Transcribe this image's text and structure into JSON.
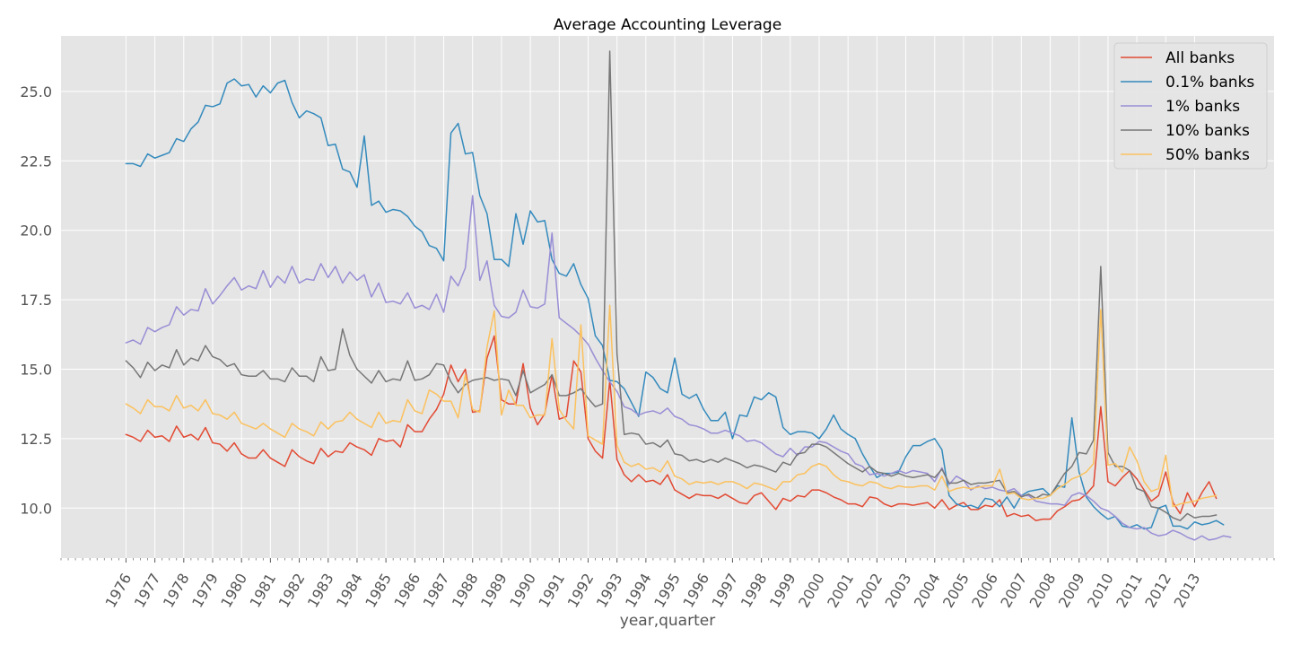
{
  "chart_data": {
    "type": "line",
    "title": "Average Accounting Leverage",
    "xlabel": "year,quarter",
    "ylabel": "",
    "ylim": [
      8.2,
      27.0
    ],
    "yticks": [
      "10.0",
      "12.5",
      "15.0",
      "17.5",
      "20.0",
      "22.5",
      "25.0"
    ],
    "ytick_values": [
      10.0,
      12.5,
      15.0,
      17.5,
      20.0,
      22.5,
      25.0
    ],
    "xlim": [
      1973.75,
      2015.75
    ],
    "xticks": [
      "1976",
      "1977",
      "1978",
      "1979",
      "1980",
      "1981",
      "1982",
      "1983",
      "1984",
      "1985",
      "1986",
      "1987",
      "1988",
      "1989",
      "1990",
      "1991",
      "1992",
      "1993",
      "1994",
      "1995",
      "1996",
      "1997",
      "1998",
      "1999",
      "2000",
      "2001",
      "2002",
      "2003",
      "2004",
      "2005",
      "2006",
      "2007",
      "2008",
      "2009",
      "2010",
      "2011",
      "2012",
      "2013"
    ],
    "grid": true,
    "legend_position": "top-right",
    "style": {
      "background": "#e5e5e5",
      "grid_color": "#ffffff",
      "series_colors": [
        "#e24a33",
        "#348abd",
        "#988ed5",
        "#777777",
        "#fbc15e"
      ]
    },
    "x_start": 1976.0,
    "x_step": 0.25,
    "series": [
      {
        "name": "All banks",
        "values": [
          12.65,
          12.55,
          12.4,
          12.8,
          12.55,
          12.6,
          12.4,
          12.95,
          12.55,
          12.65,
          12.45,
          12.9,
          12.35,
          12.3,
          12.05,
          12.35,
          11.95,
          11.8,
          11.8,
          12.1,
          11.8,
          11.65,
          11.5,
          12.1,
          11.85,
          11.7,
          11.6,
          12.15,
          11.85,
          12.05,
          12.0,
          12.35,
          12.2,
          12.1,
          11.9,
          12.5,
          12.4,
          12.45,
          12.2,
          13.0,
          12.75,
          12.75,
          13.2,
          13.55,
          14.1,
          15.15,
          14.55,
          15.0,
          13.45,
          13.5,
          15.4,
          16.2,
          13.9,
          13.75,
          13.75,
          15.2,
          13.6,
          13.0,
          13.4,
          14.8,
          13.2,
          13.3,
          15.3,
          14.9,
          12.5,
          12.05,
          11.8,
          14.6,
          11.75,
          11.2,
          10.95,
          11.2,
          10.95,
          11.0,
          10.85,
          11.2,
          10.65,
          10.5,
          10.35,
          10.5,
          10.45,
          10.45,
          10.35,
          10.5,
          10.35,
          10.2,
          10.15,
          10.45,
          10.55,
          10.25,
          9.95,
          10.35,
          10.25,
          10.45,
          10.4,
          10.65,
          10.65,
          10.55,
          10.4,
          10.3,
          10.15,
          10.15,
          10.05,
          10.4,
          10.35,
          10.15,
          10.05,
          10.15,
          10.15,
          10.1,
          10.15,
          10.2,
          10.0,
          10.3,
          9.95,
          10.1,
          10.2,
          9.95,
          9.95,
          10.1,
          10.05,
          10.3,
          9.7,
          9.8,
          9.7,
          9.75,
          9.55,
          9.6,
          9.6,
          9.9,
          10.05,
          10.25,
          10.3,
          10.5,
          10.8,
          13.65,
          10.95,
          10.8,
          11.1,
          11.35,
          11.05,
          10.65,
          10.25,
          10.45,
          11.3,
          10.2,
          9.8,
          10.55,
          10.05,
          10.55,
          10.95,
          10.35
        ]
      },
      {
        "name": "0.1% banks",
        "values": [
          22.4,
          22.4,
          22.3,
          22.75,
          22.6,
          22.7,
          22.8,
          23.3,
          23.2,
          23.65,
          23.9,
          24.5,
          24.45,
          24.55,
          25.3,
          25.45,
          25.2,
          25.25,
          24.8,
          25.2,
          24.95,
          25.3,
          25.4,
          24.6,
          24.05,
          24.3,
          24.2,
          24.05,
          23.05,
          23.1,
          22.2,
          22.1,
          21.55,
          23.4,
          20.9,
          21.05,
          20.65,
          20.75,
          20.7,
          20.5,
          20.15,
          19.95,
          19.45,
          19.35,
          18.9,
          23.5,
          23.85,
          22.75,
          22.8,
          21.25,
          20.6,
          18.95,
          18.95,
          18.7,
          20.6,
          19.5,
          20.7,
          20.3,
          20.35,
          18.95,
          18.45,
          18.35,
          18.8,
          18.05,
          17.55,
          16.2,
          15.85,
          14.6,
          14.55,
          14.3,
          13.8,
          13.3,
          14.9,
          14.7,
          14.3,
          14.15,
          15.4,
          14.1,
          13.95,
          14.1,
          13.55,
          13.15,
          13.15,
          13.45,
          12.5,
          13.35,
          13.3,
          14.0,
          13.9,
          14.15,
          14.0,
          12.9,
          12.65,
          12.75,
          12.75,
          12.7,
          12.5,
          12.85,
          13.35,
          12.85,
          12.65,
          12.5,
          11.95,
          11.5,
          11.1,
          11.25,
          11.25,
          11.3,
          11.85,
          12.25,
          12.25,
          12.4,
          12.5,
          12.1,
          10.45,
          10.15,
          10.05,
          10.1,
          10.0,
          10.35,
          10.3,
          10.05,
          10.4,
          10.0,
          10.45,
          10.6,
          10.65,
          10.7,
          10.45,
          10.8,
          10.75,
          13.25,
          11.3,
          10.4,
          10.05,
          9.8,
          9.6,
          9.7,
          9.35,
          9.3,
          9.4,
          9.25,
          9.3,
          10.0,
          10.1,
          9.35,
          9.35,
          9.25,
          9.5,
          9.4,
          9.45,
          9.55,
          9.4
        ]
      },
      {
        "name": "1% banks",
        "values": [
          15.95,
          16.05,
          15.9,
          16.5,
          16.35,
          16.5,
          16.6,
          17.25,
          16.95,
          17.15,
          17.1,
          17.9,
          17.35,
          17.65,
          18.0,
          18.3,
          17.85,
          18.0,
          17.9,
          18.55,
          17.95,
          18.35,
          18.1,
          18.7,
          18.1,
          18.25,
          18.2,
          18.8,
          18.3,
          18.7,
          18.1,
          18.5,
          18.2,
          18.4,
          17.6,
          18.1,
          17.4,
          17.45,
          17.35,
          17.75,
          17.2,
          17.3,
          17.15,
          17.7,
          17.05,
          18.35,
          18.0,
          18.65,
          21.25,
          18.2,
          18.9,
          17.3,
          16.9,
          16.85,
          17.05,
          17.85,
          17.25,
          17.2,
          17.35,
          19.9,
          16.85,
          16.65,
          16.45,
          16.2,
          15.9,
          15.4,
          14.95,
          14.55,
          14.2,
          13.65,
          13.55,
          13.35,
          13.45,
          13.5,
          13.4,
          13.6,
          13.3,
          13.2,
          13.0,
          12.95,
          12.85,
          12.7,
          12.7,
          12.8,
          12.7,
          12.6,
          12.4,
          12.45,
          12.35,
          12.15,
          11.95,
          11.85,
          12.15,
          11.9,
          12.2,
          12.2,
          12.4,
          12.35,
          12.2,
          12.05,
          11.95,
          11.6,
          11.5,
          11.2,
          11.25,
          11.15,
          11.25,
          11.35,
          11.25,
          11.35,
          11.3,
          11.25,
          10.95,
          11.45,
          10.85,
          11.15,
          11.0,
          10.65,
          10.8,
          10.7,
          10.75,
          10.65,
          10.6,
          10.7,
          10.45,
          10.45,
          10.25,
          10.2,
          10.15,
          10.15,
          10.1,
          10.45,
          10.55,
          10.45,
          10.25,
          10.0,
          9.9,
          9.7,
          9.45,
          9.3,
          9.25,
          9.3,
          9.1,
          9.0,
          9.05,
          9.2,
          9.1,
          8.95,
          8.85,
          9.0,
          8.85,
          8.9,
          9.0,
          8.95
        ]
      },
      {
        "name": "10% banks",
        "values": [
          15.3,
          15.05,
          14.7,
          15.25,
          14.95,
          15.15,
          15.05,
          15.7,
          15.15,
          15.4,
          15.3,
          15.85,
          15.45,
          15.35,
          15.1,
          15.2,
          14.8,
          14.75,
          14.75,
          14.95,
          14.65,
          14.65,
          14.55,
          15.05,
          14.75,
          14.75,
          14.55,
          15.45,
          14.95,
          15.0,
          16.45,
          15.5,
          15.0,
          14.75,
          14.5,
          14.95,
          14.55,
          14.65,
          14.6,
          15.3,
          14.6,
          14.65,
          14.8,
          15.2,
          15.15,
          14.55,
          14.15,
          14.45,
          14.6,
          14.65,
          14.7,
          14.6,
          14.65,
          14.6,
          14.05,
          14.95,
          14.15,
          14.3,
          14.45,
          14.8,
          14.05,
          14.05,
          14.15,
          14.3,
          13.95,
          13.65,
          13.75,
          26.45,
          15.55,
          12.65,
          12.7,
          12.65,
          12.3,
          12.35,
          12.2,
          12.45,
          11.95,
          11.9,
          11.7,
          11.75,
          11.65,
          11.75,
          11.65,
          11.8,
          11.7,
          11.6,
          11.45,
          11.55,
          11.5,
          11.4,
          11.3,
          11.65,
          11.55,
          11.95,
          12.0,
          12.3,
          12.3,
          12.2,
          12.0,
          11.8,
          11.6,
          11.45,
          11.3,
          11.5,
          11.3,
          11.25,
          11.15,
          11.25,
          11.15,
          11.1,
          11.15,
          11.2,
          11.1,
          11.4,
          10.9,
          10.9,
          11.0,
          10.85,
          10.9,
          10.9,
          10.95,
          11.0,
          10.55,
          10.6,
          10.4,
          10.5,
          10.35,
          10.5,
          10.45,
          10.85,
          11.25,
          11.5,
          12.0,
          11.95,
          12.45,
          18.7,
          12.0,
          11.5,
          11.5,
          11.35,
          10.7,
          10.6,
          10.05,
          10.0,
          9.85,
          9.65,
          9.55,
          9.8,
          9.65,
          9.7,
          9.7,
          9.75
        ]
      },
      {
        "name": "50% banks",
        "values": [
          13.75,
          13.6,
          13.4,
          13.9,
          13.65,
          13.65,
          13.5,
          14.05,
          13.6,
          13.7,
          13.5,
          13.9,
          13.4,
          13.35,
          13.2,
          13.45,
          13.05,
          12.95,
          12.85,
          13.05,
          12.85,
          12.7,
          12.55,
          13.05,
          12.85,
          12.75,
          12.6,
          13.1,
          12.85,
          13.1,
          13.15,
          13.45,
          13.2,
          13.05,
          12.9,
          13.45,
          13.05,
          13.15,
          13.1,
          13.9,
          13.5,
          13.4,
          14.25,
          14.1,
          13.85,
          13.85,
          13.25,
          14.8,
          13.55,
          13.45,
          15.8,
          17.1,
          13.35,
          14.25,
          13.7,
          13.7,
          13.25,
          13.35,
          13.35,
          16.1,
          13.55,
          13.15,
          12.85,
          16.6,
          12.6,
          12.45,
          12.3,
          17.3,
          12.25,
          11.65,
          11.5,
          11.6,
          11.4,
          11.45,
          11.3,
          11.7,
          11.15,
          11.05,
          10.85,
          10.95,
          10.9,
          10.95,
          10.85,
          10.95,
          10.95,
          10.85,
          10.7,
          10.9,
          10.85,
          10.75,
          10.65,
          10.95,
          10.95,
          11.2,
          11.25,
          11.5,
          11.6,
          11.5,
          11.2,
          11.0,
          10.95,
          10.85,
          10.8,
          10.95,
          10.9,
          10.75,
          10.7,
          10.8,
          10.75,
          10.75,
          10.8,
          10.8,
          10.65,
          11.15,
          10.6,
          10.7,
          10.75,
          10.7,
          10.75,
          10.8,
          10.8,
          11.4,
          10.5,
          10.55,
          10.35,
          10.3,
          10.35,
          10.35,
          10.45,
          10.7,
          10.85,
          11.05,
          11.15,
          11.3,
          11.6,
          17.15,
          11.55,
          11.6,
          11.3,
          12.2,
          11.7,
          10.95,
          10.6,
          10.7,
          11.9,
          10.05,
          10.15,
          10.2,
          10.25,
          10.35,
          10.4,
          10.45
        ]
      }
    ]
  }
}
